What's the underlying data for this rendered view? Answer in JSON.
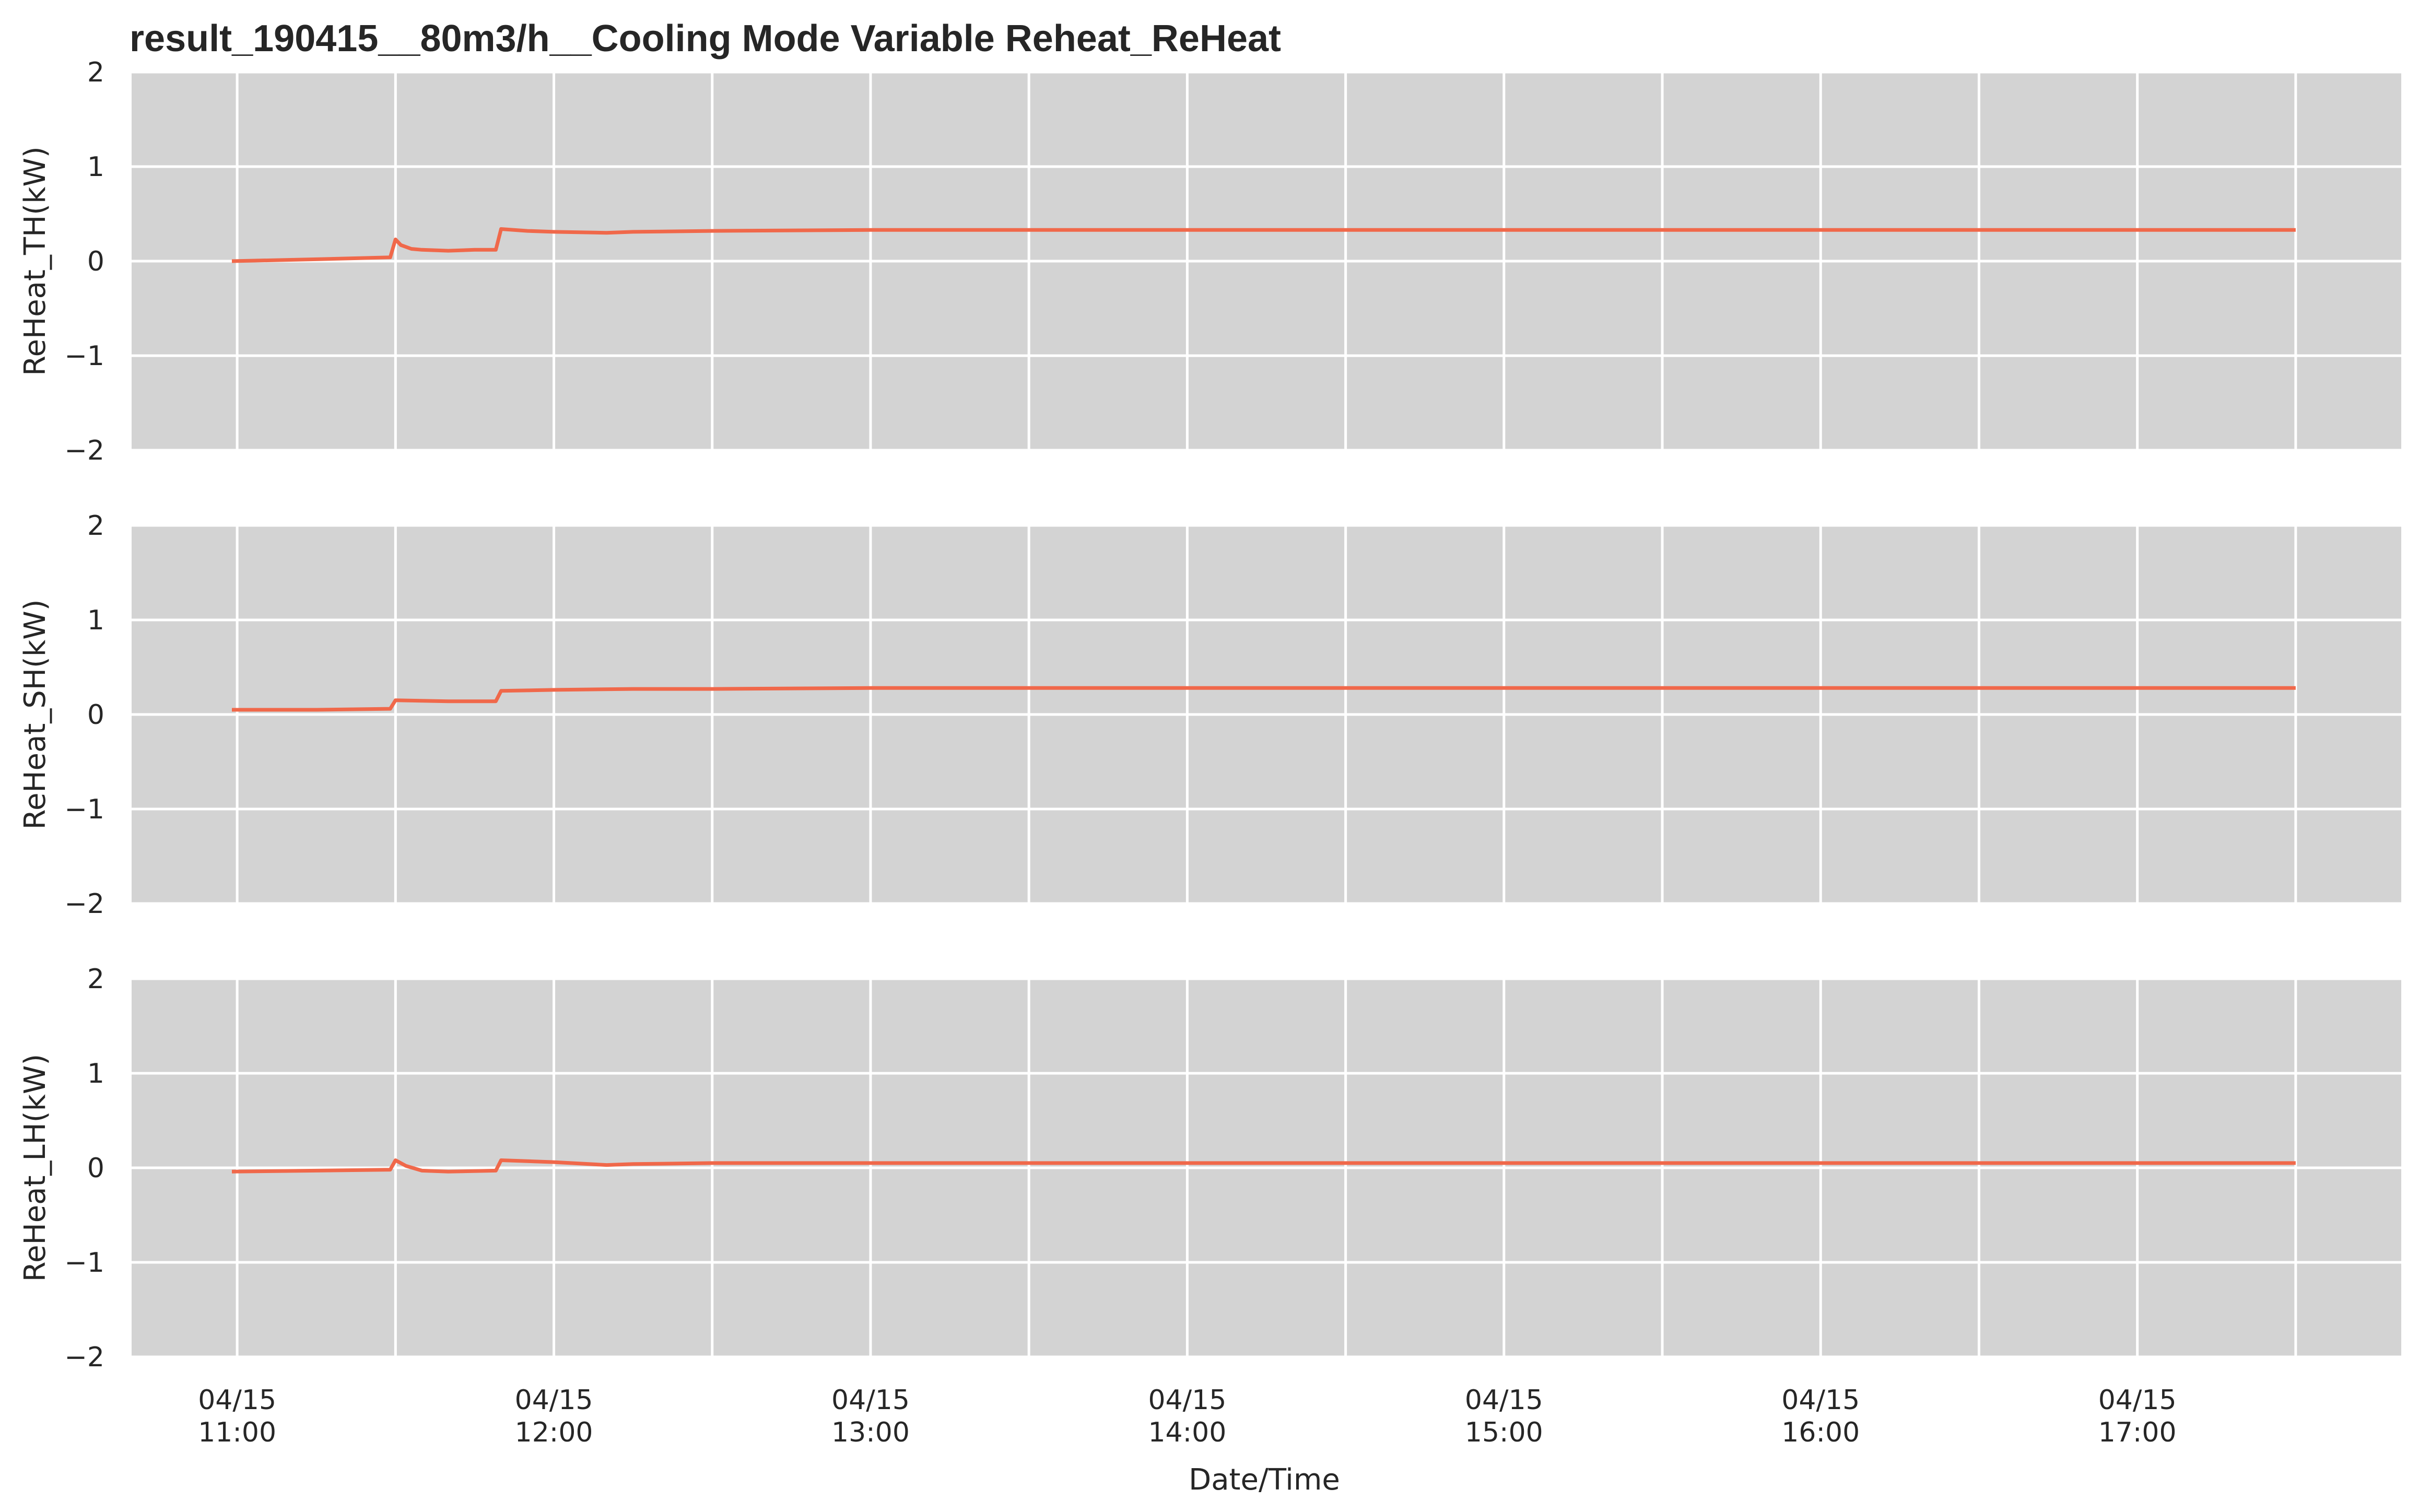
{
  "chart_data": {
    "type": "line",
    "title": "result_190415__80m3/h__Cooling Mode Variable Reheat_ReHeat",
    "xlabel": "Date/Time",
    "x_ticks": [
      {
        "time": "11:00",
        "date": "04/15",
        "label": "04/15\n11:00"
      },
      {
        "time": "12:00",
        "date": "04/15",
        "label": "04/15\n12:00"
      },
      {
        "time": "13:00",
        "date": "04/15",
        "label": "04/15\n13:00"
      },
      {
        "time": "14:00",
        "date": "04/15",
        "label": "04/15\n14:00"
      },
      {
        "time": "15:00",
        "date": "04/15",
        "label": "04/15\n15:00"
      },
      {
        "time": "16:00",
        "date": "04/15",
        "label": "04/15\n16:00"
      },
      {
        "time": "17:00",
        "date": "04/15",
        "label": "04/15\n17:00"
      }
    ],
    "xlim": [
      "04/15 10:40",
      "04/15 17:50"
    ],
    "grid": true,
    "line_color": "#f0684a",
    "background_color": "#d3d3d3",
    "subplots": [
      {
        "ylabel": "ReHeat_TH(kW)",
        "ylim": [
          -2,
          2
        ],
        "y_ticks": [
          "2",
          "1",
          "0",
          "−1",
          "−2"
        ],
        "x": [
          "10:59",
          "11:15",
          "11:29",
          "11:30",
          "11:31",
          "11:33",
          "11:35",
          "11:40",
          "11:45",
          "11:49",
          "11:50",
          "11:55",
          "12:00",
          "12:10",
          "12:15",
          "12:30",
          "13:00",
          "14:00",
          "15:00",
          "16:00",
          "17:00",
          "17:30"
        ],
        "y": [
          0.0,
          0.02,
          0.04,
          0.23,
          0.17,
          0.13,
          0.12,
          0.11,
          0.12,
          0.12,
          0.34,
          0.32,
          0.31,
          0.3,
          0.31,
          0.32,
          0.33,
          0.33,
          0.33,
          0.33,
          0.33,
          0.33
        ]
      },
      {
        "ylabel": "ReHeat_SH(kW)",
        "ylim": [
          -2,
          2
        ],
        "y_ticks": [
          "2",
          "1",
          "0",
          "−1",
          "−2"
        ],
        "x": [
          "10:59",
          "11:15",
          "11:29",
          "11:30",
          "11:40",
          "11:49",
          "11:50",
          "12:00",
          "12:15",
          "12:30",
          "13:00",
          "14:00",
          "15:00",
          "16:00",
          "17:00",
          "17:30"
        ],
        "y": [
          0.05,
          0.05,
          0.06,
          0.15,
          0.14,
          0.14,
          0.25,
          0.26,
          0.27,
          0.27,
          0.28,
          0.28,
          0.28,
          0.28,
          0.28,
          0.28
        ]
      },
      {
        "ylabel": "ReHeat_LH(kW)",
        "ylim": [
          -2,
          2
        ],
        "y_ticks": [
          "2",
          "1",
          "0",
          "−1",
          "−2"
        ],
        "x": [
          "10:59",
          "11:15",
          "11:29",
          "11:30",
          "11:32",
          "11:35",
          "11:40",
          "11:49",
          "11:50",
          "11:55",
          "12:00",
          "12:10",
          "12:15",
          "12:30",
          "13:00",
          "14:00",
          "15:00",
          "16:00",
          "17:00",
          "17:30"
        ],
        "y": [
          -0.04,
          -0.03,
          -0.02,
          0.08,
          0.02,
          -0.03,
          -0.04,
          -0.03,
          0.08,
          0.07,
          0.06,
          0.03,
          0.04,
          0.05,
          0.05,
          0.05,
          0.05,
          0.05,
          0.05,
          0.05
        ]
      }
    ]
  }
}
